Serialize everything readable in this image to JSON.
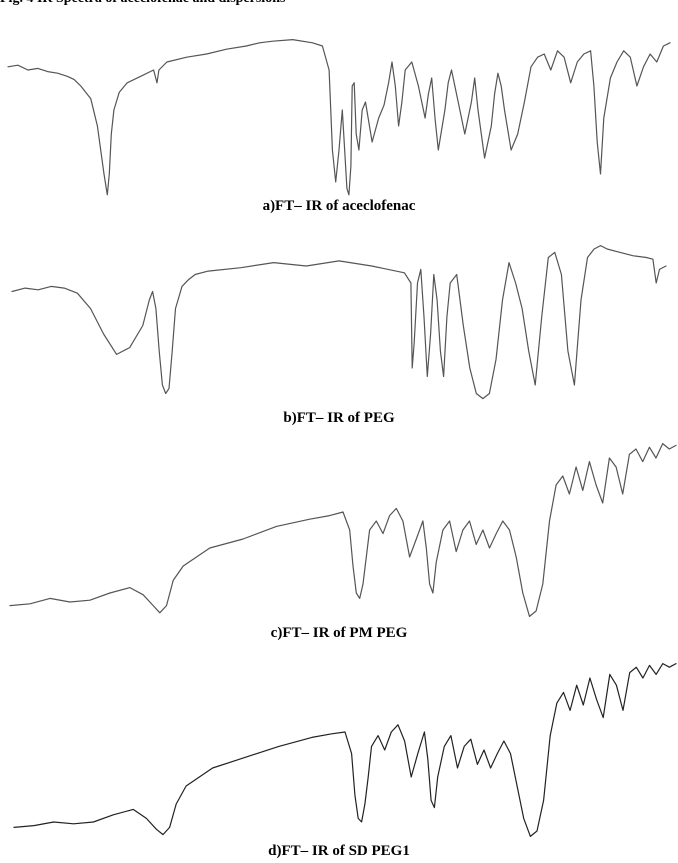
{
  "figure": {
    "header": "Fig. 4 IR Spectra of aceclofenac and dispersions"
  },
  "chart_data": [
    {
      "type": "line",
      "title": "a)FT– IR of aceclofenac",
      "xlabel": "",
      "ylabel": "",
      "axes_visible": false,
      "grid": false,
      "color": "#555555",
      "series": [
        {
          "x": [
            0,
            0.015,
            0.03,
            0.045,
            0.06,
            0.075,
            0.09,
            0.1,
            0.11,
            0.125,
            0.135,
            0.145,
            0.15,
            0.153,
            0.156,
            0.16,
            0.168,
            0.18,
            0.2,
            0.22,
            0.225,
            0.228,
            0.24,
            0.27,
            0.3,
            0.33,
            0.36,
            0.38,
            0.4,
            0.43,
            0.46,
            0.475,
            0.485,
            0.49,
            0.495,
            0.5,
            0.505,
            0.51,
            0.512,
            0.515,
            0.518,
            0.52,
            0.523,
            0.526,
            0.53,
            0.535,
            0.54,
            0.55,
            0.56,
            0.568,
            0.575,
            0.58,
            0.585,
            0.59,
            0.595,
            0.6,
            0.61,
            0.62,
            0.63,
            0.635,
            0.64,
            0.645,
            0.65,
            0.66,
            0.665,
            0.67,
            0.68,
            0.69,
            0.7,
            0.705,
            0.71,
            0.72,
            0.73,
            0.735,
            0.74,
            0.745,
            0.75,
            0.76,
            0.77,
            0.78,
            0.79,
            0.8,
            0.81,
            0.82,
            0.83,
            0.84,
            0.85,
            0.86,
            0.87,
            0.88,
            0.885,
            0.89,
            0.895,
            0.9,
            0.91,
            0.92,
            0.93,
            0.94,
            0.95,
            0.96,
            0.97,
            0.98,
            0.99,
            1.0
          ],
          "values": [
            0.82,
            0.83,
            0.8,
            0.81,
            0.79,
            0.78,
            0.76,
            0.74,
            0.7,
            0.62,
            0.45,
            0.15,
            0.02,
            0.15,
            0.4,
            0.55,
            0.66,
            0.72,
            0.76,
            0.8,
            0.72,
            0.8,
            0.85,
            0.88,
            0.9,
            0.93,
            0.95,
            0.97,
            0.98,
            0.99,
            0.97,
            0.95,
            0.8,
            0.3,
            0.1,
            0.3,
            0.55,
            0.2,
            0.06,
            0.02,
            0.2,
            0.7,
            0.72,
            0.4,
            0.3,
            0.55,
            0.6,
            0.35,
            0.5,
            0.58,
            0.72,
            0.85,
            0.7,
            0.45,
            0.6,
            0.8,
            0.85,
            0.7,
            0.5,
            0.65,
            0.75,
            0.5,
            0.3,
            0.55,
            0.72,
            0.8,
            0.6,
            0.4,
            0.6,
            0.75,
            0.55,
            0.25,
            0.45,
            0.65,
            0.78,
            0.7,
            0.55,
            0.3,
            0.4,
            0.6,
            0.82,
            0.88,
            0.9,
            0.8,
            0.92,
            0.88,
            0.72,
            0.85,
            0.9,
            0.92,
            0.7,
            0.35,
            0.15,
            0.5,
            0.75,
            0.85,
            0.92,
            0.88,
            0.7,
            0.82,
            0.9,
            0.85,
            0.95,
            0.97
          ]
        }
      ]
    },
    {
      "type": "line",
      "title": "b)FT– IR of PEG",
      "xlabel": "",
      "ylabel": "",
      "axes_visible": false,
      "grid": false,
      "color": "#555555",
      "series": [
        {
          "x": [
            0,
            0.02,
            0.04,
            0.06,
            0.08,
            0.1,
            0.12,
            0.14,
            0.16,
            0.18,
            0.2,
            0.21,
            0.215,
            0.22,
            0.225,
            0.23,
            0.235,
            0.24,
            0.245,
            0.25,
            0.26,
            0.27,
            0.28,
            0.3,
            0.35,
            0.4,
            0.45,
            0.5,
            0.55,
            0.6,
            0.61,
            0.612,
            0.615,
            0.62,
            0.625,
            0.63,
            0.635,
            0.64,
            0.645,
            0.65,
            0.655,
            0.66,
            0.665,
            0.67,
            0.68,
            0.69,
            0.7,
            0.71,
            0.72,
            0.73,
            0.74,
            0.75,
            0.76,
            0.77,
            0.78,
            0.79,
            0.8,
            0.81,
            0.82,
            0.83,
            0.84,
            0.85,
            0.86,
            0.87,
            0.88,
            0.89,
            0.9,
            0.91,
            0.93,
            0.95,
            0.97,
            0.98,
            0.985,
            0.99,
            1.0
          ],
          "values": [
            0.65,
            0.67,
            0.66,
            0.68,
            0.67,
            0.64,
            0.55,
            0.4,
            0.28,
            0.32,
            0.45,
            0.6,
            0.65,
            0.55,
            0.3,
            0.1,
            0.05,
            0.08,
            0.3,
            0.55,
            0.68,
            0.72,
            0.75,
            0.77,
            0.79,
            0.82,
            0.8,
            0.83,
            0.8,
            0.76,
            0.7,
            0.2,
            0.35,
            0.7,
            0.78,
            0.5,
            0.15,
            0.4,
            0.75,
            0.6,
            0.3,
            0.15,
            0.5,
            0.7,
            0.75,
            0.45,
            0.2,
            0.05,
            0.02,
            0.05,
            0.25,
            0.6,
            0.82,
            0.7,
            0.55,
            0.3,
            0.1,
            0.5,
            0.85,
            0.88,
            0.75,
            0.3,
            0.1,
            0.6,
            0.85,
            0.9,
            0.92,
            0.9,
            0.88,
            0.86,
            0.85,
            0.84,
            0.7,
            0.78,
            0.8
          ]
        }
      ]
    },
    {
      "type": "line",
      "title": "c)FT– IR of PM PEG",
      "xlabel": "",
      "ylabel": "",
      "axes_visible": false,
      "grid": false,
      "color": "#555555",
      "series": [
        {
          "x": [
            0,
            0.03,
            0.06,
            0.09,
            0.12,
            0.15,
            0.18,
            0.2,
            0.215,
            0.225,
            0.235,
            0.245,
            0.26,
            0.3,
            0.35,
            0.4,
            0.45,
            0.48,
            0.5,
            0.51,
            0.515,
            0.52,
            0.525,
            0.53,
            0.535,
            0.54,
            0.55,
            0.56,
            0.57,
            0.58,
            0.59,
            0.6,
            0.61,
            0.62,
            0.625,
            0.63,
            0.635,
            0.64,
            0.65,
            0.66,
            0.67,
            0.68,
            0.69,
            0.7,
            0.71,
            0.72,
            0.73,
            0.74,
            0.75,
            0.76,
            0.77,
            0.78,
            0.79,
            0.8,
            0.81,
            0.82,
            0.83,
            0.84,
            0.85,
            0.86,
            0.87,
            0.88,
            0.89,
            0.9,
            0.91,
            0.92,
            0.93,
            0.94,
            0.95,
            0.96,
            0.97,
            0.98,
            0.99,
            1.0
          ],
          "values": [
            0.08,
            0.09,
            0.12,
            0.1,
            0.11,
            0.15,
            0.18,
            0.14,
            0.08,
            0.04,
            0.08,
            0.22,
            0.3,
            0.4,
            0.45,
            0.52,
            0.56,
            0.58,
            0.6,
            0.5,
            0.3,
            0.15,
            0.12,
            0.2,
            0.35,
            0.5,
            0.55,
            0.48,
            0.58,
            0.62,
            0.55,
            0.35,
            0.45,
            0.55,
            0.4,
            0.2,
            0.15,
            0.32,
            0.5,
            0.55,
            0.38,
            0.5,
            0.55,
            0.42,
            0.5,
            0.4,
            0.48,
            0.55,
            0.5,
            0.35,
            0.15,
            0.02,
            0.05,
            0.2,
            0.55,
            0.75,
            0.8,
            0.7,
            0.85,
            0.72,
            0.88,
            0.75,
            0.65,
            0.9,
            0.85,
            0.7,
            0.92,
            0.95,
            0.88,
            0.96,
            0.9,
            0.98,
            0.95,
            0.97
          ]
        }
      ]
    },
    {
      "type": "line",
      "title": "d)FT– IR of SD PEG1",
      "xlabel": "",
      "ylabel": "",
      "axes_visible": false,
      "grid": false,
      "color": "#222222",
      "series": [
        {
          "x": [
            0,
            0.03,
            0.06,
            0.09,
            0.12,
            0.15,
            0.18,
            0.2,
            0.215,
            0.225,
            0.235,
            0.245,
            0.26,
            0.3,
            0.35,
            0.4,
            0.45,
            0.48,
            0.5,
            0.51,
            0.515,
            0.52,
            0.525,
            0.53,
            0.535,
            0.54,
            0.55,
            0.56,
            0.57,
            0.58,
            0.59,
            0.6,
            0.61,
            0.62,
            0.625,
            0.63,
            0.635,
            0.64,
            0.65,
            0.66,
            0.67,
            0.68,
            0.69,
            0.7,
            0.71,
            0.72,
            0.73,
            0.74,
            0.75,
            0.76,
            0.77,
            0.78,
            0.79,
            0.8,
            0.81,
            0.82,
            0.83,
            0.84,
            0.85,
            0.86,
            0.87,
            0.88,
            0.89,
            0.9,
            0.91,
            0.92,
            0.93,
            0.94,
            0.95,
            0.96,
            0.97,
            0.98,
            0.99,
            1.0
          ],
          "values": [
            0.07,
            0.08,
            0.1,
            0.09,
            0.1,
            0.14,
            0.17,
            0.12,
            0.06,
            0.03,
            0.07,
            0.2,
            0.3,
            0.4,
            0.46,
            0.52,
            0.57,
            0.59,
            0.6,
            0.48,
            0.25,
            0.12,
            0.1,
            0.2,
            0.35,
            0.52,
            0.58,
            0.5,
            0.6,
            0.64,
            0.55,
            0.35,
            0.48,
            0.6,
            0.45,
            0.22,
            0.18,
            0.35,
            0.52,
            0.58,
            0.4,
            0.52,
            0.56,
            0.42,
            0.5,
            0.4,
            0.48,
            0.55,
            0.48,
            0.3,
            0.12,
            0.02,
            0.05,
            0.22,
            0.58,
            0.76,
            0.82,
            0.72,
            0.86,
            0.75,
            0.9,
            0.78,
            0.68,
            0.92,
            0.86,
            0.72,
            0.93,
            0.96,
            0.9,
            0.97,
            0.92,
            0.98,
            0.96,
            0.98
          ]
        }
      ]
    }
  ]
}
